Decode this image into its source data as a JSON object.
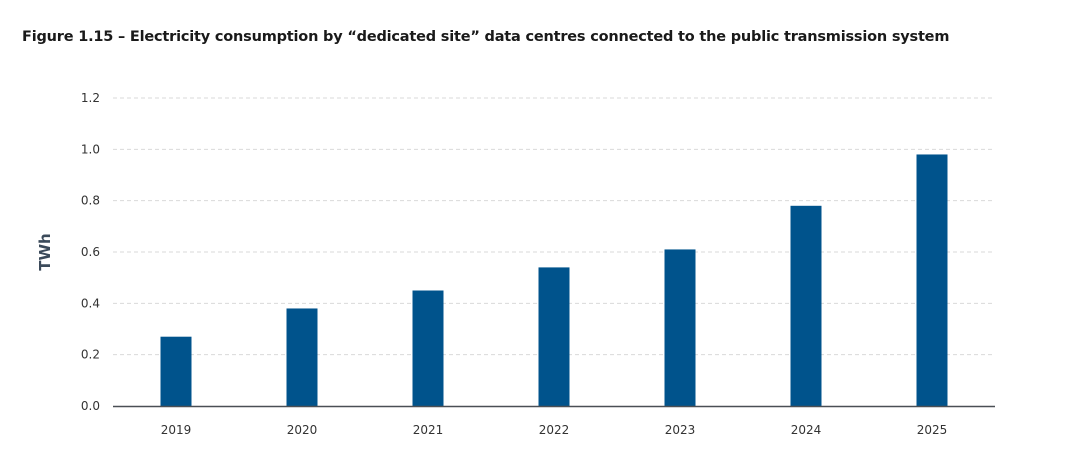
{
  "chart_data": {
    "type": "bar",
    "title": "Figure 1.15 – Electricity consumption by “dedicated site” data centres connected to the public transmission system",
    "xlabel": "",
    "ylabel": "TWh",
    "categories": [
      "2019",
      "2020",
      "2021",
      "2022",
      "2023",
      "2024",
      "2025"
    ],
    "values": [
      0.27,
      0.38,
      0.45,
      0.54,
      0.61,
      0.78,
      0.98
    ],
    "ylim": [
      0,
      1.2
    ],
    "yticks": [
      "0.0",
      "0.2",
      "0.4",
      "0.6",
      "0.8",
      "1.0",
      "1.2"
    ],
    "grid": true,
    "legend": "none",
    "colors": {
      "bar": "#00538c",
      "grid": "#d9d9d9",
      "axis": "#4a4f55"
    }
  }
}
